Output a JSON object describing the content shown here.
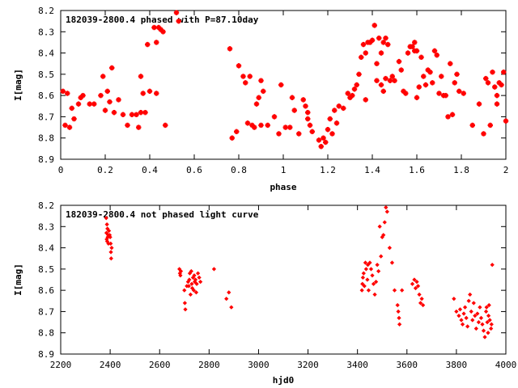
{
  "colors": {
    "marker": "#ff0000",
    "axis": "#000000",
    "background": "#ffffff"
  },
  "chart_data": [
    {
      "type": "scatter",
      "title": "182039-2800.4 phased with P=87.10day",
      "xlabel": "phase",
      "ylabel": "I[mag]",
      "xlim": [
        0,
        2
      ],
      "ylim": [
        8.9,
        8.2
      ],
      "y_inverted": true,
      "grid": false,
      "legend": "none",
      "marker": "star",
      "xticks": [
        "0",
        "0.2",
        "0.4",
        "0.6",
        "0.8",
        "1",
        "1.2",
        "1.4",
        "1.6",
        "1.8",
        "2"
      ],
      "yticks": [
        "8.2",
        "8.3",
        "8.4",
        "8.5",
        "8.6",
        "8.7",
        "8.8",
        "8.9"
      ],
      "points": [
        [
          0.01,
          8.58
        ],
        [
          0.02,
          8.74
        ],
        [
          0.03,
          8.59
        ],
        [
          0.04,
          8.75
        ],
        [
          0.05,
          8.66
        ],
        [
          0.06,
          8.71
        ],
        [
          0.08,
          8.64
        ],
        [
          0.09,
          8.61
        ],
        [
          0.1,
          8.6
        ],
        [
          0.13,
          8.64
        ],
        [
          0.15,
          8.64
        ],
        [
          0.18,
          8.6
        ],
        [
          0.19,
          8.51
        ],
        [
          0.2,
          8.67
        ],
        [
          0.21,
          8.58
        ],
        [
          0.22,
          8.63
        ],
        [
          0.23,
          8.47
        ],
        [
          0.24,
          8.68
        ],
        [
          0.26,
          8.62
        ],
        [
          0.28,
          8.69
        ],
        [
          0.3,
          8.74
        ],
        [
          0.32,
          8.69
        ],
        [
          0.34,
          8.69
        ],
        [
          0.35,
          8.75
        ],
        [
          0.36,
          8.51
        ],
        [
          0.36,
          8.68
        ],
        [
          0.37,
          8.59
        ],
        [
          0.38,
          8.68
        ],
        [
          0.39,
          8.36
        ],
        [
          0.4,
          8.58
        ],
        [
          0.42,
          8.28
        ],
        [
          0.43,
          8.35
        ],
        [
          0.43,
          8.59
        ],
        [
          0.44,
          8.28
        ],
        [
          0.45,
          8.29
        ],
        [
          0.46,
          8.3
        ],
        [
          0.47,
          8.74
        ],
        [
          0.52,
          8.21
        ],
        [
          0.53,
          8.25
        ],
        [
          0.76,
          8.38
        ],
        [
          0.77,
          8.8
        ],
        [
          0.79,
          8.77
        ],
        [
          0.8,
          8.46
        ],
        [
          0.82,
          8.51
        ],
        [
          0.83,
          8.54
        ],
        [
          0.84,
          8.73
        ],
        [
          0.85,
          8.51
        ],
        [
          0.86,
          8.74
        ],
        [
          0.87,
          8.75
        ],
        [
          0.88,
          8.64
        ],
        [
          0.89,
          8.61
        ],
        [
          0.9,
          8.53
        ],
        [
          0.9,
          8.74
        ],
        [
          0.91,
          8.58
        ],
        [
          0.93,
          8.74
        ],
        [
          0.96,
          8.7
        ],
        [
          0.98,
          8.78
        ],
        [
          0.99,
          8.55
        ],
        [
          1.01,
          8.75
        ],
        [
          1.03,
          8.75
        ],
        [
          1.04,
          8.61
        ],
        [
          1.05,
          8.67
        ],
        [
          1.07,
          8.78
        ],
        [
          1.09,
          8.62
        ],
        [
          1.1,
          8.65
        ],
        [
          1.11,
          8.68
        ],
        [
          1.11,
          8.71
        ],
        [
          1.12,
          8.74
        ],
        [
          1.13,
          8.77
        ],
        [
          1.16,
          8.81
        ],
        [
          1.17,
          8.84
        ],
        [
          1.18,
          8.8
        ],
        [
          1.19,
          8.82
        ],
        [
          1.2,
          8.76
        ],
        [
          1.21,
          8.71
        ],
        [
          1.22,
          8.78
        ],
        [
          1.23,
          8.67
        ],
        [
          1.24,
          8.73
        ],
        [
          1.25,
          8.65
        ],
        [
          1.27,
          8.66
        ],
        [
          1.29,
          8.59
        ],
        [
          1.3,
          8.61
        ],
        [
          1.31,
          8.6
        ],
        [
          1.32,
          8.57
        ],
        [
          1.33,
          8.55
        ],
        [
          1.34,
          8.5
        ],
        [
          1.35,
          8.42
        ],
        [
          1.36,
          8.36
        ],
        [
          1.37,
          8.4
        ],
        [
          1.37,
          8.62
        ],
        [
          1.38,
          8.35
        ],
        [
          1.39,
          8.35
        ],
        [
          1.4,
          8.34
        ],
        [
          1.41,
          8.27
        ],
        [
          1.42,
          8.45
        ],
        [
          1.42,
          8.53
        ],
        [
          1.43,
          8.33
        ],
        [
          1.44,
          8.4
        ],
        [
          1.44,
          8.55
        ],
        [
          1.45,
          8.35
        ],
        [
          1.45,
          8.58
        ],
        [
          1.46,
          8.33
        ],
        [
          1.46,
          8.52
        ],
        [
          1.47,
          8.36
        ],
        [
          1.48,
          8.53
        ],
        [
          1.49,
          8.51
        ],
        [
          1.5,
          8.53
        ],
        [
          1.52,
          8.44
        ],
        [
          1.53,
          8.48
        ],
        [
          1.54,
          8.58
        ],
        [
          1.55,
          8.59
        ],
        [
          1.56,
          8.4
        ],
        [
          1.57,
          8.37
        ],
        [
          1.58,
          8.37
        ],
        [
          1.59,
          8.35
        ],
        [
          1.59,
          8.39
        ],
        [
          1.6,
          8.39
        ],
        [
          1.6,
          8.61
        ],
        [
          1.61,
          8.56
        ],
        [
          1.62,
          8.42
        ],
        [
          1.63,
          8.51
        ],
        [
          1.64,
          8.55
        ],
        [
          1.65,
          8.48
        ],
        [
          1.66,
          8.49
        ],
        [
          1.67,
          8.54
        ],
        [
          1.68,
          8.39
        ],
        [
          1.69,
          8.41
        ],
        [
          1.7,
          8.59
        ],
        [
          1.71,
          8.51
        ],
        [
          1.72,
          8.6
        ],
        [
          1.73,
          8.6
        ],
        [
          1.74,
          8.7
        ],
        [
          1.75,
          8.45
        ],
        [
          1.76,
          8.69
        ],
        [
          1.77,
          8.54
        ],
        [
          1.78,
          8.5
        ],
        [
          1.79,
          8.58
        ],
        [
          1.81,
          8.59
        ],
        [
          1.85,
          8.74
        ],
        [
          1.88,
          8.64
        ],
        [
          1.9,
          8.78
        ],
        [
          1.91,
          8.52
        ],
        [
          1.92,
          8.54
        ],
        [
          1.93,
          8.74
        ],
        [
          1.94,
          8.49
        ],
        [
          1.95,
          8.56
        ],
        [
          1.96,
          8.6
        ],
        [
          1.96,
          8.64
        ],
        [
          1.97,
          8.54
        ],
        [
          1.98,
          8.55
        ],
        [
          1.99,
          8.49
        ],
        [
          2.0,
          8.72
        ]
      ]
    },
    {
      "type": "scatter",
      "title": "182039-2800.4 not phased light curve",
      "xlabel": "hjd0",
      "ylabel": "I[mag]",
      "xlim": [
        2200,
        4000
      ],
      "ylim": [
        8.9,
        8.2
      ],
      "y_inverted": true,
      "grid": false,
      "legend": "none",
      "marker": "diamond",
      "xticks": [
        "2200",
        "2400",
        "2600",
        "2800",
        "3000",
        "3200",
        "3400",
        "3600",
        "3800",
        "4000"
      ],
      "yticks": [
        "8.2",
        "8.3",
        "8.4",
        "8.5",
        "8.6",
        "8.7",
        "8.8",
        "8.9"
      ],
      "points": [
        [
          2384,
          8.26
        ],
        [
          2385,
          8.33
        ],
        [
          2386,
          8.36
        ],
        [
          2387,
          8.29
        ],
        [
          2388,
          8.37
        ],
        [
          2389,
          8.31
        ],
        [
          2390,
          8.35
        ],
        [
          2392,
          8.34
        ],
        [
          2393,
          8.38
        ],
        [
          2395,
          8.32
        ],
        [
          2398,
          8.34
        ],
        [
          2400,
          8.35
        ],
        [
          2402,
          8.38
        ],
        [
          2403,
          8.42
        ],
        [
          2404,
          8.45
        ],
        [
          2406,
          8.4
        ],
        [
          2680,
          8.5
        ],
        [
          2682,
          8.52
        ],
        [
          2684,
          8.53
        ],
        [
          2686,
          8.51
        ],
        [
          2700,
          8.6
        ],
        [
          2702,
          8.66
        ],
        [
          2704,
          8.69
        ],
        [
          2710,
          8.58
        ],
        [
          2715,
          8.56
        ],
        [
          2718,
          8.58
        ],
        [
          2720,
          8.55
        ],
        [
          2722,
          8.52
        ],
        [
          2725,
          8.62
        ],
        [
          2728,
          8.51
        ],
        [
          2730,
          8.57
        ],
        [
          2732,
          8.59
        ],
        [
          2735,
          8.54
        ],
        [
          2738,
          8.6
        ],
        [
          2740,
          8.53
        ],
        [
          2742,
          8.56
        ],
        [
          2745,
          8.55
        ],
        [
          2748,
          8.61
        ],
        [
          2750,
          8.57
        ],
        [
          2755,
          8.52
        ],
        [
          2760,
          8.54
        ],
        [
          2765,
          8.56
        ],
        [
          2820,
          8.5
        ],
        [
          2870,
          8.64
        ],
        [
          2880,
          8.61
        ],
        [
          2890,
          8.68
        ],
        [
          3418,
          8.6
        ],
        [
          3420,
          8.57
        ],
        [
          3422,
          8.54
        ],
        [
          3425,
          8.52
        ],
        [
          3428,
          8.58
        ],
        [
          3432,
          8.47
        ],
        [
          3435,
          8.5
        ],
        [
          3440,
          8.55
        ],
        [
          3442,
          8.48
        ],
        [
          3445,
          8.6
        ],
        [
          3450,
          8.47
        ],
        [
          3455,
          8.5
        ],
        [
          3460,
          8.53
        ],
        [
          3465,
          8.57
        ],
        [
          3470,
          8.62
        ],
        [
          3475,
          8.56
        ],
        [
          3480,
          8.48
        ],
        [
          3485,
          8.51
        ],
        [
          3490,
          8.3
        ],
        [
          3495,
          8.44
        ],
        [
          3500,
          8.35
        ],
        [
          3505,
          8.34
        ],
        [
          3510,
          8.28
        ],
        [
          3515,
          8.21
        ],
        [
          3520,
          8.23
        ],
        [
          3530,
          8.4
        ],
        [
          3540,
          8.47
        ],
        [
          3550,
          8.6
        ],
        [
          3562,
          8.67
        ],
        [
          3565,
          8.7
        ],
        [
          3568,
          8.73
        ],
        [
          3570,
          8.76
        ],
        [
          3580,
          8.6
        ],
        [
          3622,
          8.57
        ],
        [
          3630,
          8.55
        ],
        [
          3635,
          8.59
        ],
        [
          3640,
          8.56
        ],
        [
          3645,
          8.58
        ],
        [
          3650,
          8.62
        ],
        [
          3655,
          8.66
        ],
        [
          3660,
          8.64
        ],
        [
          3665,
          8.67
        ],
        [
          3790,
          8.64
        ],
        [
          3800,
          8.7
        ],
        [
          3810,
          8.72
        ],
        [
          3815,
          8.69
        ],
        [
          3820,
          8.74
        ],
        [
          3825,
          8.76
        ],
        [
          3830,
          8.71
        ],
        [
          3835,
          8.68
        ],
        [
          3840,
          8.73
        ],
        [
          3845,
          8.77
        ],
        [
          3850,
          8.65
        ],
        [
          3855,
          8.62
        ],
        [
          3860,
          8.7
        ],
        [
          3865,
          8.74
        ],
        [
          3870,
          8.66
        ],
        [
          3875,
          8.72
        ],
        [
          3880,
          8.78
        ],
        [
          3885,
          8.71
        ],
        [
          3890,
          8.75
        ],
        [
          3895,
          8.68
        ],
        [
          3900,
          8.73
        ],
        [
          3905,
          8.76
        ],
        [
          3910,
          8.79
        ],
        [
          3915,
          8.82
        ],
        [
          3920,
          8.7
        ],
        [
          3922,
          8.68
        ],
        [
          3925,
          8.75
        ],
        [
          3928,
          8.8
        ],
        [
          3930,
          8.72
        ],
        [
          3932,
          8.67
        ],
        [
          3935,
          8.74
        ],
        [
          3940,
          8.78
        ],
        [
          3942,
          8.76
        ],
        [
          3945,
          8.48
        ]
      ]
    }
  ]
}
